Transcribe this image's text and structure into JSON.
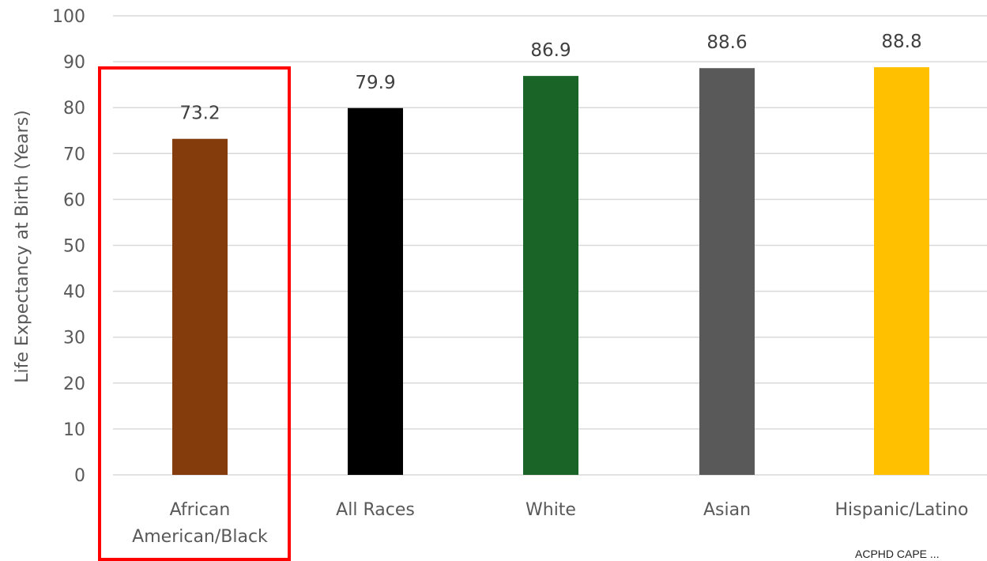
{
  "chart_data": {
    "type": "bar",
    "categories": [
      "African American/Black",
      "All Races",
      "White",
      "Asian",
      "Hispanic/Latino"
    ],
    "category_lines": [
      [
        "African",
        "American/Black"
      ],
      [
        "All Races"
      ],
      [
        "White"
      ],
      [
        "Asian"
      ],
      [
        "Hispanic/Latino"
      ]
    ],
    "values": [
      73.2,
      79.9,
      86.9,
      88.6,
      88.8
    ],
    "data_labels": [
      "73.2",
      "79.9",
      "86.9",
      "88.6",
      "88.8"
    ],
    "colors": [
      "#843c0c",
      "#000000",
      "#1a6428",
      "#595959",
      "#ffc000"
    ],
    "ylabel": "Life Expectancy at Birth (Years)",
    "xlabel": "",
    "title": "",
    "ylim": [
      0,
      100
    ],
    "yticks": [
      0,
      10,
      20,
      30,
      40,
      50,
      60,
      70,
      80,
      90,
      100
    ],
    "grid": true,
    "legend": "none",
    "highlight_category": "African American/Black",
    "highlight_color": "#ff0000"
  },
  "footer": {
    "text": "ACPHD CAPE  ..."
  }
}
